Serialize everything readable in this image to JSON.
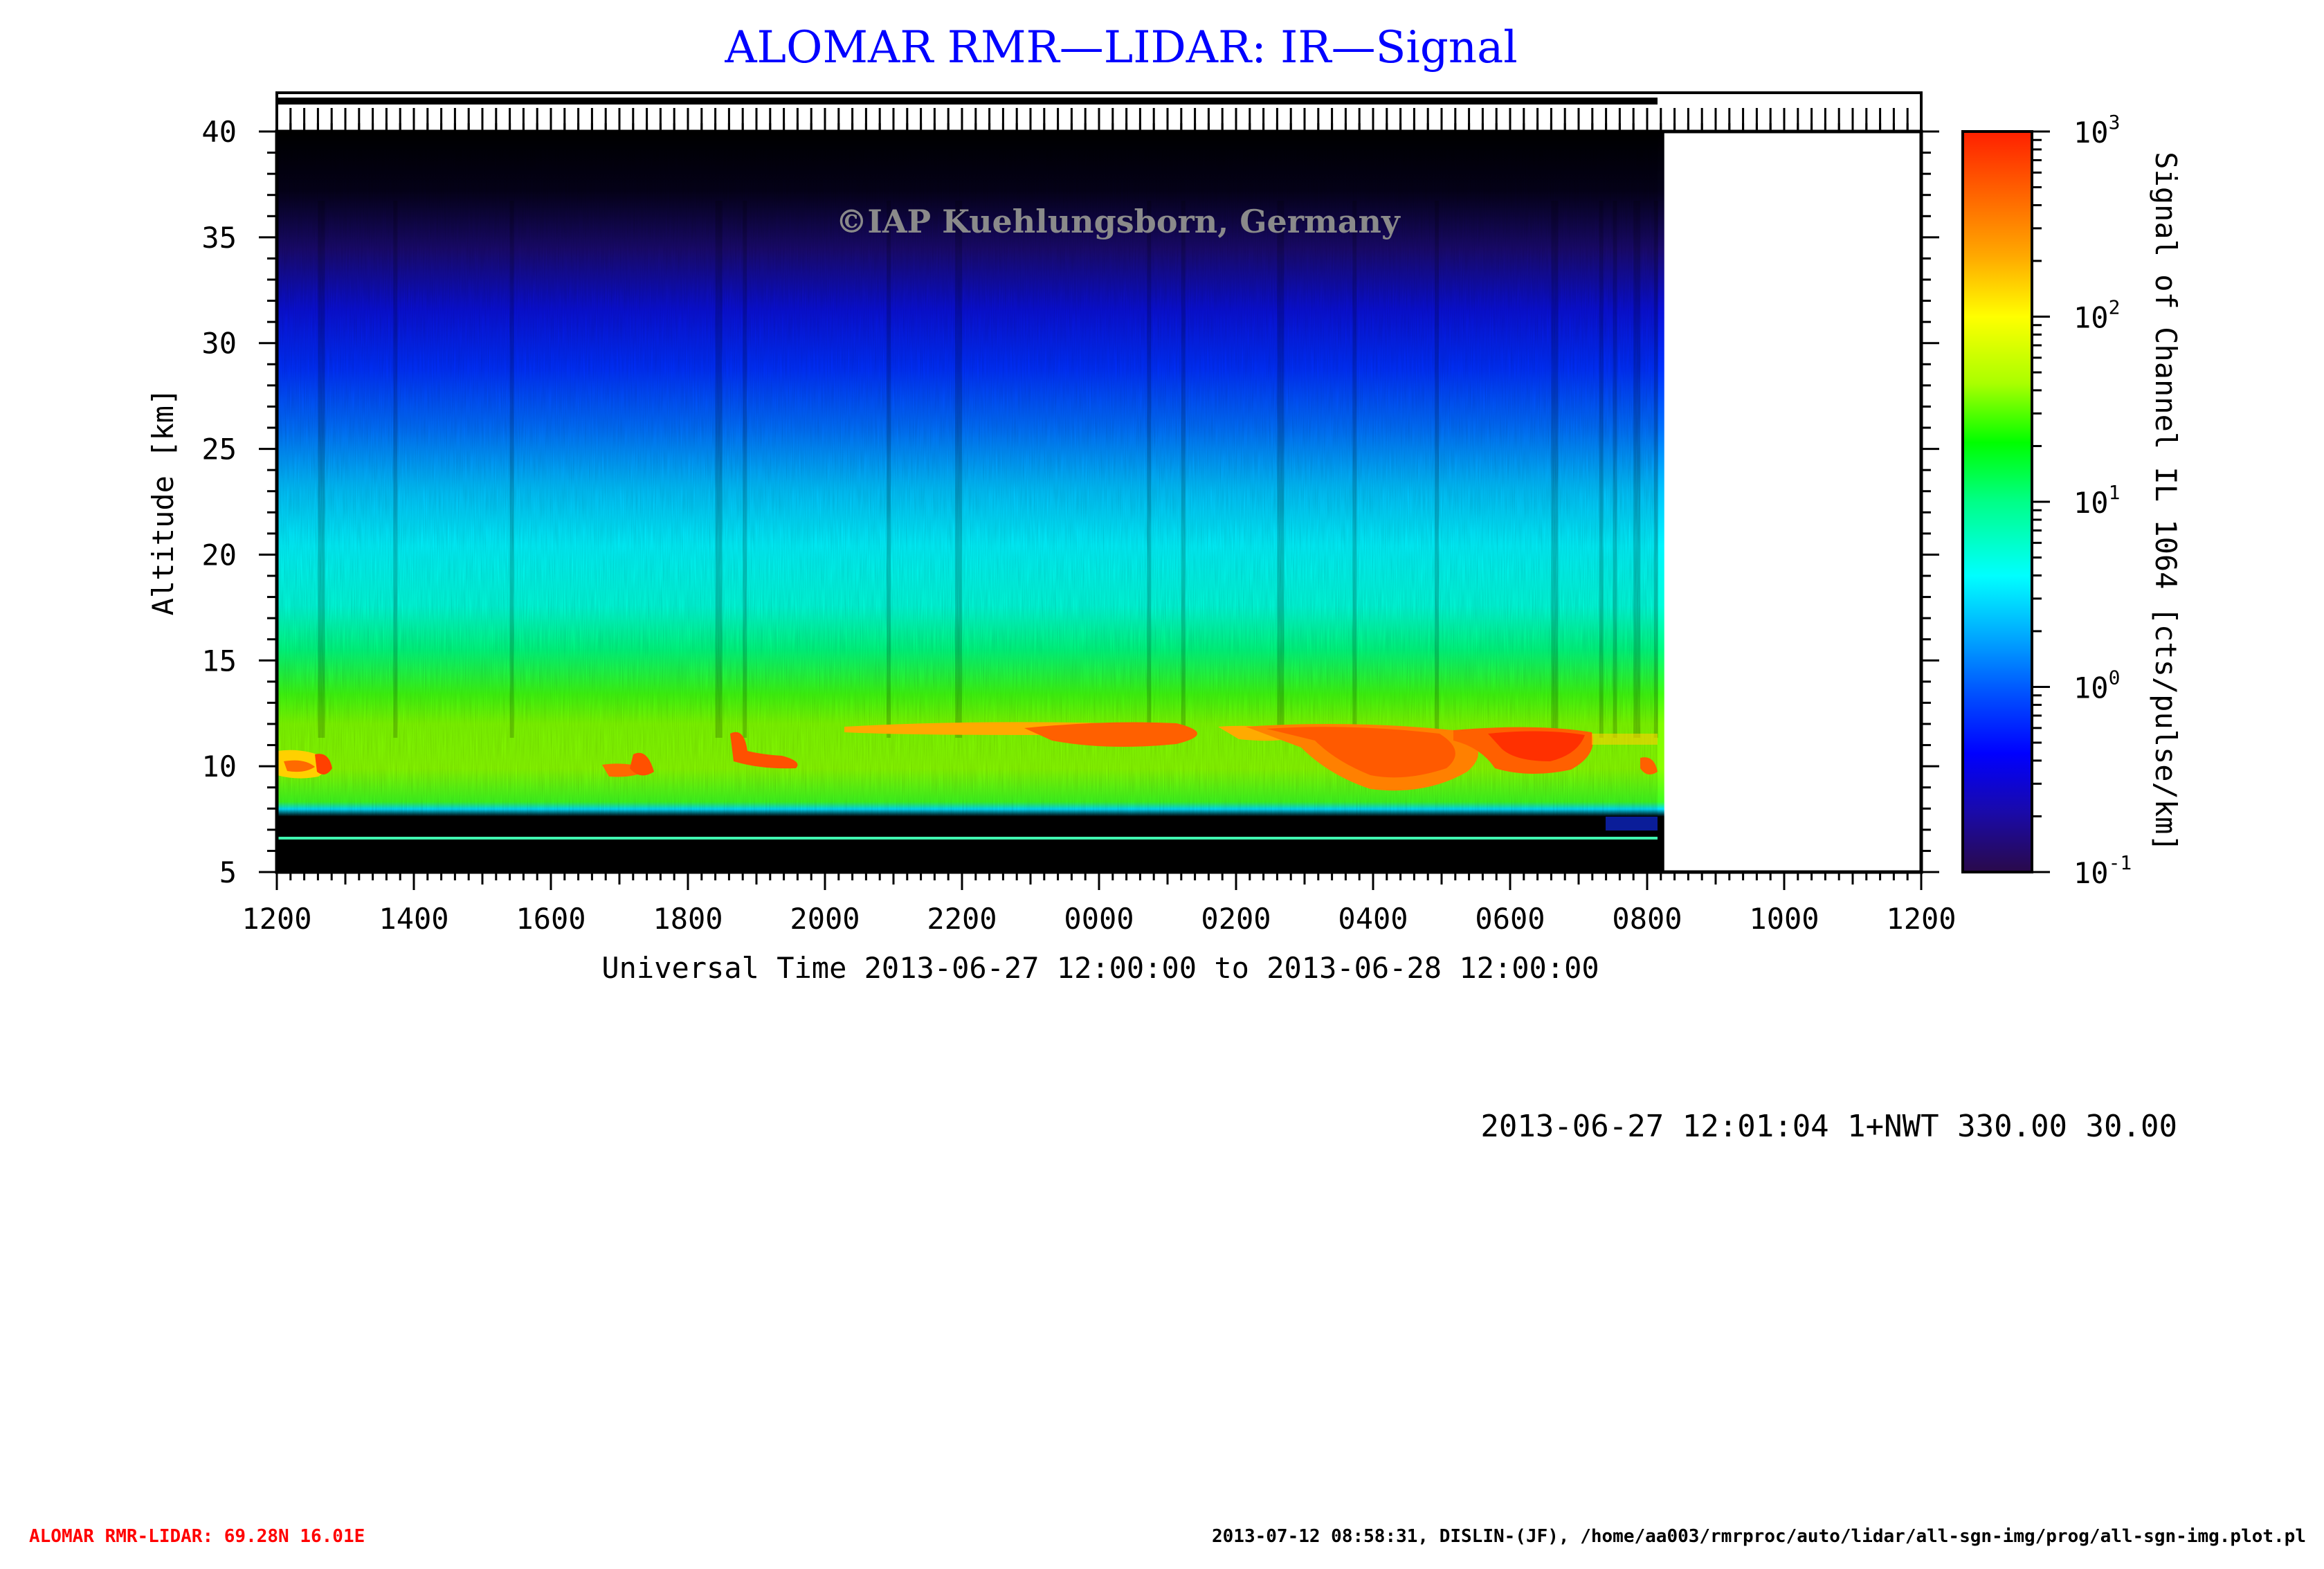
{
  "chart_data": {
    "type": "heatmap",
    "title": "ALOMAR RMR—LIDAR: IR—Signal",
    "xlabel": "Universal Time 2013-06-27 12:00:00 to 2013-06-28 12:00:00",
    "ylabel": "Altitude [km]",
    "colorbar_label": "Signal of Channel IL 1064 [cts/pulse/km]",
    "x_ticks": [
      "1200",
      "1400",
      "1600",
      "1800",
      "2000",
      "2200",
      "0000",
      "0200",
      "0400",
      "0600",
      "0800",
      "1000",
      "1200"
    ],
    "x_range_hours": [
      0,
      24
    ],
    "data_end_hours": 20.25,
    "y_ticks": [
      5,
      10,
      15,
      20,
      25,
      30,
      35,
      40
    ],
    "ylim": [
      5,
      40
    ],
    "color_scale": "log",
    "clim": [
      0.1,
      1000
    ],
    "colorbar_ticks": [
      {
        "base": "10",
        "exp": "-1"
      },
      {
        "base": "10",
        "exp": "0"
      },
      {
        "base": "10",
        "exp": "1"
      },
      {
        "base": "10",
        "exp": "2"
      },
      {
        "base": "10",
        "exp": "3"
      }
    ],
    "colormap": [
      "#2a0a4a",
      "#1a0aa8",
      "#0000ff",
      "#0050ff",
      "#00aaff",
      "#00ffff",
      "#00ff88",
      "#00ff00",
      "#aaff00",
      "#ffff00",
      "#ffaa00",
      "#ff6000",
      "#ff2000"
    ],
    "cloud_layer_km": [
      9,
      12
    ],
    "annotation": "©IAP Kuehlungsborn, Germany"
  },
  "info_line": "2013-06-27 12:01:04 1+NWT 330.00 30.00",
  "footer": {
    "left": "ALOMAR RMR-LIDAR: 69.28N 16.01E",
    "right": "2013-07-12 08:58:31, DISLIN-(JF), /home/aa003/rmrproc/auto/lidar/all-sgn-img/prog/all-sgn-img.plot.pl"
  }
}
